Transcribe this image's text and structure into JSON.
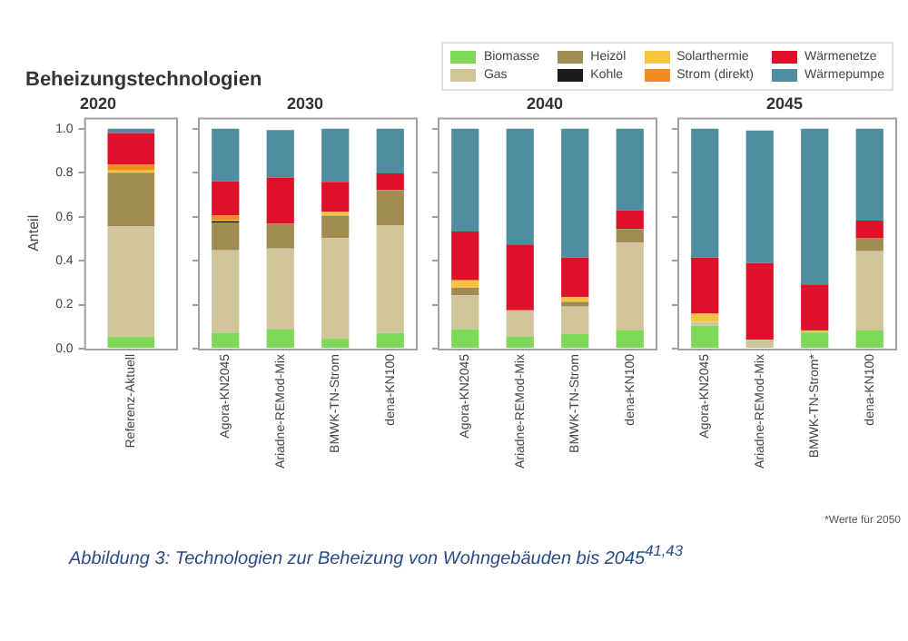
{
  "chart_data": [
    {
      "type": "bar",
      "title": "Beheizungstechnologien",
      "subtitle": "2020",
      "ylabel": "Anteil",
      "legend": "top right",
      "categories": [
        "Referenz-Aktuell"
      ],
      "stacked": true,
      "ylim": [
        0,
        1.05
      ],
      "yticks": [
        {
          "value": 0,
          "label": "0.0"
        },
        {
          "value": 0.2,
          "label": "0.2"
        },
        {
          "value": 0.4,
          "label": "0.4"
        },
        {
          "value": 0.6,
          "label": "0.6"
        },
        {
          "value": 0.8,
          "label": "0.8"
        },
        {
          "value": 1,
          "label": "1.0"
        }
      ],
      "series": [
        {
          "name": "Biomasse",
          "color": "#7ed957",
          "values": [
            0.055
          ]
        },
        {
          "name": "Gas",
          "color": "#cfc49a",
          "values": [
            0.5
          ]
        },
        {
          "name": "Heizöl",
          "color": "#a08c50",
          "values": [
            0.245
          ]
        },
        {
          "name": "Kohle",
          "color": "#1a1a1a",
          "values": [
            0
          ]
        },
        {
          "name": "Solarthermie",
          "color": "#f5c242",
          "values": [
            0.01
          ]
        },
        {
          "name": "Strom (direkt)",
          "color": "#f08c1e",
          "values": [
            0.027
          ]
        },
        {
          "name": "Wärmenetze",
          "color": "#e0102a",
          "values": [
            0.143
          ]
        },
        {
          "name": "Wärmepumpe",
          "color": "#4f8ea0",
          "values": [
            0.02
          ]
        }
      ],
      "annotations": [
        "Abbildung 3: Technologien zur Beheizung von Wohngebäuden bis 2045$^{41,43}$"
      ]
    },
    {
      "type": "bar",
      "title": "2030",
      "categories": [
        "Agora-KN2045",
        "Ariadne-REMod-Mix",
        "BMWK-TN-Strom",
        "dena-KN100"
      ],
      "stacked": true,
      "ylim": [
        0,
        1.05
      ],
      "yticks": [
        0,
        0.2,
        0.4,
        0.6,
        0.8,
        1
      ],
      "tick_labels": "x",
      "series": [
        {
          "color": "#7ed957",
          "values": [
            0.073,
            0.087,
            0.045,
            0.072
          ]
        },
        {
          "color": "#cfc49a",
          "values": [
            0.374,
            0.368,
            0.458,
            0.487
          ]
        },
        {
          "color": "#a08c50",
          "values": [
            0.127,
            0.112,
            0.102,
            0.162
          ]
        },
        {
          "color": "#1a1a1a",
          "values": [
            0.006,
            0,
            0,
            0
          ]
        },
        {
          "color": "#f5c242",
          "values": [
            0.006,
            0,
            0.016,
            0
          ]
        },
        {
          "color": "#f08c1e",
          "values": [
            0.02,
            0,
            0,
            0
          ]
        },
        {
          "color": "#e0102a",
          "values": [
            0.156,
            0.211,
            0.137,
            0.076
          ]
        },
        {
          "color": "#4f8ea0",
          "values": [
            0.238,
            0.216,
            0.242,
            0.203
          ]
        }
      ]
    },
    {
      "type": "bar",
      "title": "2040",
      "categories": [
        "Agora-KN2045",
        "Ariadne-REMod-Mix",
        "BMWK-TN-Strom",
        "dena-KN100"
      ],
      "stacked": true,
      "ylim": [
        0,
        1.05
      ],
      "yticks": [
        0,
        0.2,
        0.4,
        0.6,
        0.8,
        1
      ],
      "tick_labels": "x",
      "series": [
        {
          "color": "#7ed957",
          "values": [
            0.089,
            0.056,
            0.066,
            0.083
          ]
        },
        {
          "color": "#cfc49a",
          "values": [
            0.153,
            0.118,
            0.125,
            0.399
          ]
        },
        {
          "color": "#a08c50",
          "values": [
            0.035,
            0,
            0.022,
            0.062
          ]
        },
        {
          "color": "#1a1a1a",
          "values": [
            0,
            0,
            0,
            0
          ]
        },
        {
          "color": "#f5c242",
          "values": [
            0.034,
            0,
            0.021,
            0
          ]
        },
        {
          "color": "#f08c1e",
          "values": [
            0,
            0,
            0,
            0
          ]
        },
        {
          "color": "#e0102a",
          "values": [
            0.221,
            0.3,
            0.18,
            0.085
          ]
        },
        {
          "color": "#4f8ea0",
          "values": [
            0.468,
            0.526,
            0.586,
            0.371
          ]
        }
      ]
    },
    {
      "type": "bar",
      "title": "2045",
      "categories": [
        "Agora-KN2045",
        "Ariadne-REMod-Mix",
        "BMWK-TN-Strom*",
        "dena-KN100"
      ],
      "stacked": true,
      "ylim": [
        0,
        1.05
      ],
      "yticks": [
        0,
        0.2,
        0.4,
        0.6,
        0.8,
        1
      ],
      "tick_labels": "x",
      "series": [
        {
          "color": "#7ed957",
          "values": [
            0.104,
            0,
            0.073,
            0.083
          ]
        },
        {
          "color": "#cfc49a",
          "values": [
            0.018,
            0.041,
            0,
            0.36
          ]
        },
        {
          "color": "#a08c50",
          "values": [
            0,
            0,
            0,
            0.058
          ]
        },
        {
          "color": "#1a1a1a",
          "values": [
            0,
            0,
            0,
            0
          ]
        },
        {
          "color": "#f5c242",
          "values": [
            0.037,
            0,
            0.01,
            0
          ]
        },
        {
          "color": "#f08c1e",
          "values": [
            0,
            0,
            0,
            0
          ]
        },
        {
          "color": "#e0102a",
          "values": [
            0.255,
            0.348,
            0.209,
            0.081
          ]
        },
        {
          "color": "#4f8ea0",
          "values": [
            0.586,
            0.603,
            0.708,
            0.418
          ]
        }
      ],
      "annotations": [
        "*Werte für 2050"
      ]
    }
  ]
}
